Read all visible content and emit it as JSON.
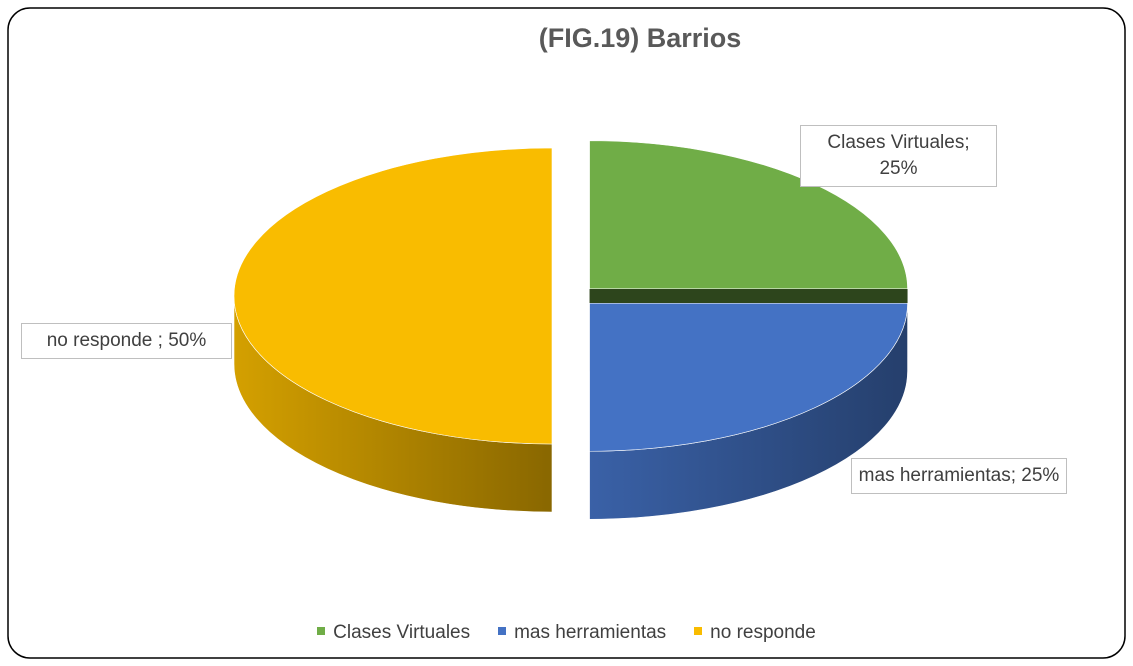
{
  "chart_data": {
    "type": "pie3d",
    "title": "(FIG.19) Barrios",
    "categories": [
      "Clases Virtuales",
      "mas herramientas",
      "no responde"
    ],
    "values": [
      25,
      25,
      50
    ],
    "value_labels": [
      "Clases Virtuales; 25%",
      "mas herramientas; 25%",
      "no responde ; 50%"
    ],
    "colors": [
      "#70ad47",
      "#4472c4",
      "#f9bc00"
    ],
    "legend": "bottom"
  }
}
